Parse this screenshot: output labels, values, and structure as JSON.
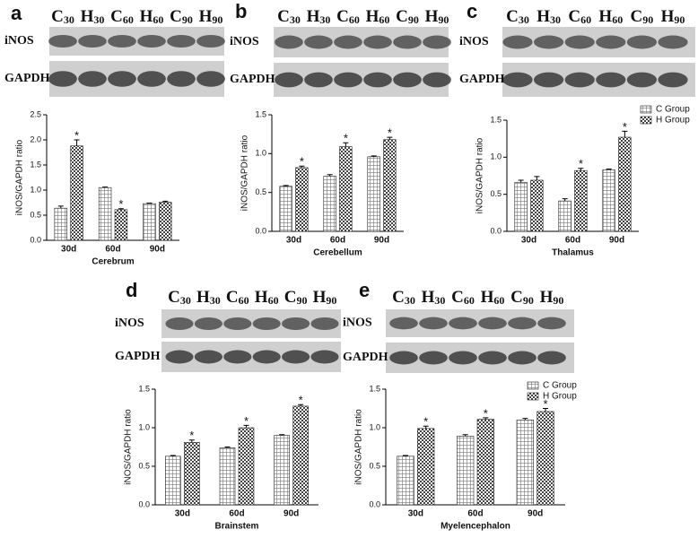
{
  "panels": [
    {
      "letter": "a",
      "lanes": [
        {
          "main": "C",
          "sub": "30"
        },
        {
          "main": "H",
          "sub": "30"
        },
        {
          "main": "C",
          "sub": "60"
        },
        {
          "main": "H",
          "sub": "60"
        },
        {
          "main": "C",
          "sub": "90"
        },
        {
          "main": "H",
          "sub": "90"
        }
      ],
      "blots": [
        "iNOS",
        "GAPDH"
      ]
    },
    {
      "letter": "b",
      "lanes": [
        {
          "main": "C",
          "sub": "30"
        },
        {
          "main": "H",
          "sub": "30"
        },
        {
          "main": "C",
          "sub": "60"
        },
        {
          "main": "H",
          "sub": "60"
        },
        {
          "main": "C",
          "sub": "90"
        },
        {
          "main": "H",
          "sub": "90"
        }
      ],
      "blots": [
        "iNOS",
        "GAPDH"
      ]
    },
    {
      "letter": "c",
      "lanes": [
        {
          "main": "C",
          "sub": "30"
        },
        {
          "main": "H",
          "sub": "30"
        },
        {
          "main": "C",
          "sub": "60"
        },
        {
          "main": "H",
          "sub": "60"
        },
        {
          "main": "C",
          "sub": "90"
        },
        {
          "main": "H",
          "sub": "90"
        }
      ],
      "blots": [
        "iNOS",
        "GAPDH"
      ]
    },
    {
      "letter": "d",
      "lanes": [
        {
          "main": "C",
          "sub": "30"
        },
        {
          "main": "H",
          "sub": "30"
        },
        {
          "main": "C",
          "sub": "60"
        },
        {
          "main": "H",
          "sub": "60"
        },
        {
          "main": "C",
          "sub": "90"
        },
        {
          "main": "H",
          "sub": "90"
        }
      ],
      "blots": [
        "iNOS",
        "GAPDH"
      ]
    },
    {
      "letter": "e",
      "lanes": [
        {
          "main": "C",
          "sub": "30"
        },
        {
          "main": "H",
          "sub": "30"
        },
        {
          "main": "C",
          "sub": "60"
        },
        {
          "main": "H",
          "sub": "60"
        },
        {
          "main": "C",
          "sub": "90"
        },
        {
          "main": "H",
          "sub": "90"
        }
      ],
      "blots": [
        "iNOS",
        "GAPDH"
      ]
    }
  ],
  "chart_data": [
    {
      "type": "bar",
      "x_label": "Cerebrum",
      "y_label": "iNOS/GAPDH ratio",
      "categories": [
        "30d",
        "60d",
        "90d"
      ],
      "series": [
        {
          "color": "#777777",
          "values": [
            0.64,
            1.05,
            0.73
          ],
          "errors": [
            0.04,
            0.01,
            0.01
          ]
        },
        {
          "color": "#444444",
          "values": [
            1.88,
            0.61,
            0.76
          ],
          "errors": [
            0.12,
            0.02,
            0.02
          ]
        }
      ],
      "ylim": [
        0,
        2.5
      ],
      "yticks": [
        {
          "value": 0,
          "label": "0.0"
        },
        0.5,
        {
          "value": 1,
          "label": "1.0"
        },
        1.5,
        {
          "value": 2,
          "label": "2.0"
        },
        2.5
      ],
      "annotations": [
        {
          "text": "*",
          "category": "30d"
        },
        {
          "text": "*",
          "category": "60d"
        }
      ]
    },
    {
      "type": "bar",
      "x_label": "Cerebellum",
      "y_label": "iNOS/GAPDH ratio",
      "categories": [
        "30d",
        "60d",
        "90d"
      ],
      "series": [
        {
          "color": "#777777",
          "values": [
            0.58,
            0.71,
            0.96
          ],
          "errors": [
            0.01,
            0.02,
            0.01
          ]
        },
        {
          "color": "#444444",
          "values": [
            0.82,
            1.09,
            1.18
          ],
          "errors": [
            0.02,
            0.05,
            0.03
          ]
        }
      ],
      "ylim": [
        0,
        1.5
      ],
      "yticks": [
        {
          "value": 0,
          "label": "0.0"
        },
        0.5,
        {
          "value": 1,
          "label": "1.0"
        },
        1.5
      ],
      "annotations": [
        {
          "text": "*",
          "category": "30d"
        },
        {
          "text": "*",
          "category": "60d"
        },
        {
          "text": "*",
          "category": "90d"
        }
      ]
    },
    {
      "type": "bar",
      "x_label": "Thalamus",
      "y_label": "iNOS/GAPDH ratio",
      "categories": [
        "30d",
        "60d",
        "90d"
      ],
      "series": [
        {
          "name": "C Group",
          "color": "#777777",
          "values": [
            0.66,
            0.41,
            0.83
          ],
          "errors": [
            0.03,
            0.03,
            0.01
          ]
        },
        {
          "name": "H Group",
          "color": "#444444",
          "values": [
            0.69,
            0.82,
            1.27
          ],
          "errors": [
            0.05,
            0.03,
            0.08
          ]
        }
      ],
      "ylim": [
        0,
        1.5
      ],
      "yticks": [
        {
          "value": 0,
          "label": "0.0"
        },
        0.5,
        {
          "value": 1,
          "label": "1.0"
        },
        1.5
      ],
      "legend": "top-right",
      "annotations": [
        {
          "text": "*",
          "category": "60d"
        },
        {
          "text": "*",
          "category": "90d"
        }
      ]
    },
    {
      "type": "bar",
      "x_label": "Brainstem",
      "y_label": "iNOS/GAPDH ratio",
      "categories": [
        "30d",
        "60d",
        "90d"
      ],
      "series": [
        {
          "color": "#777777",
          "values": [
            0.63,
            0.74,
            0.9
          ],
          "errors": [
            0.01,
            0.01,
            0.01
          ]
        },
        {
          "color": "#444444",
          "values": [
            0.81,
            1.0,
            1.28
          ],
          "errors": [
            0.03,
            0.03,
            0.02
          ]
        }
      ],
      "ylim": [
        0,
        1.5
      ],
      "yticks": [
        {
          "value": 0,
          "label": "0.0"
        },
        0.5,
        {
          "value": 1,
          "label": "1.0"
        },
        1.5
      ],
      "annotations": [
        {
          "text": "*",
          "category": "30d"
        },
        {
          "text": "*",
          "category": "60d"
        },
        {
          "text": "*",
          "category": "90d"
        }
      ]
    },
    {
      "type": "bar",
      "x_label": "Myelencephalon",
      "y_label": "iNOS/GAPDH ratio",
      "categories": [
        "30d",
        "60d",
        "90d"
      ],
      "series": [
        {
          "name": "C Group",
          "color": "#777777",
          "values": [
            0.63,
            0.89,
            1.1
          ],
          "errors": [
            0.01,
            0.02,
            0.02
          ]
        },
        {
          "name": "H Group",
          "color": "#444444",
          "values": [
            0.99,
            1.11,
            1.21
          ],
          "errors": [
            0.03,
            0.02,
            0.04
          ]
        }
      ],
      "ylim": [
        0,
        1.5
      ],
      "yticks": [
        {
          "value": 0,
          "label": "0.0"
        },
        0.5,
        {
          "value": 1,
          "label": "1.0"
        },
        1.5
      ],
      "legend": "top-right",
      "annotations": [
        {
          "text": "*",
          "category": "30d"
        },
        {
          "text": "*",
          "category": "60d"
        },
        {
          "text": "*",
          "category": "90d"
        }
      ]
    }
  ]
}
